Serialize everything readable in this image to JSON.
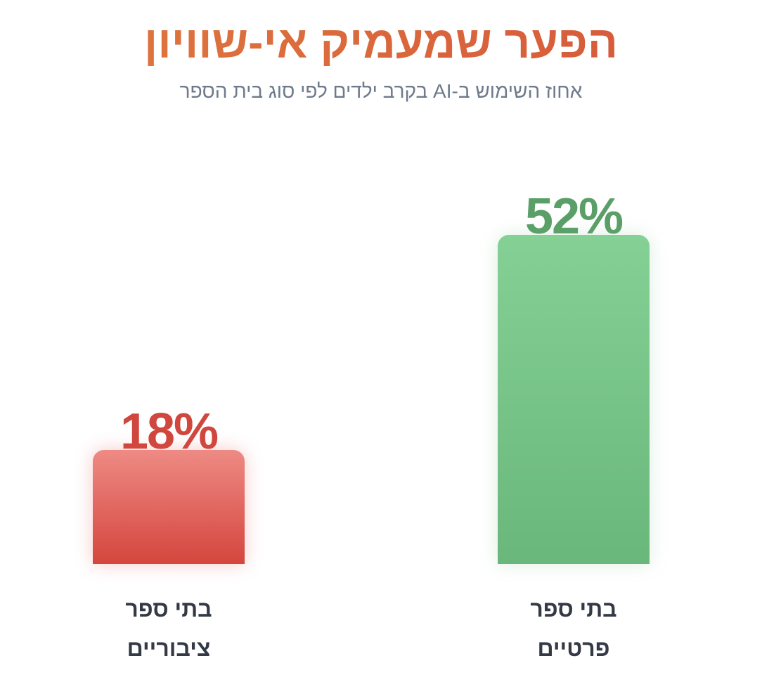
{
  "chart_data": {
    "type": "bar",
    "title": "הפער שמעמיק אי-שוויון",
    "subtitle": "אחוז השימוש ב-AI בקרב ילדים לפי סוג בית הספר",
    "categories": [
      {
        "line1": "בתי ספר",
        "line2": "ציבוריים"
      },
      {
        "line1": "בתי ספר",
        "line2": "פרטיים"
      }
    ],
    "values": [
      18,
      52
    ],
    "value_labels": [
      "18%",
      "52%"
    ],
    "ylim": [
      0,
      52
    ],
    "colors": [
      "#d4463e",
      "#6ab77c"
    ],
    "grid": false,
    "legend": "none"
  }
}
